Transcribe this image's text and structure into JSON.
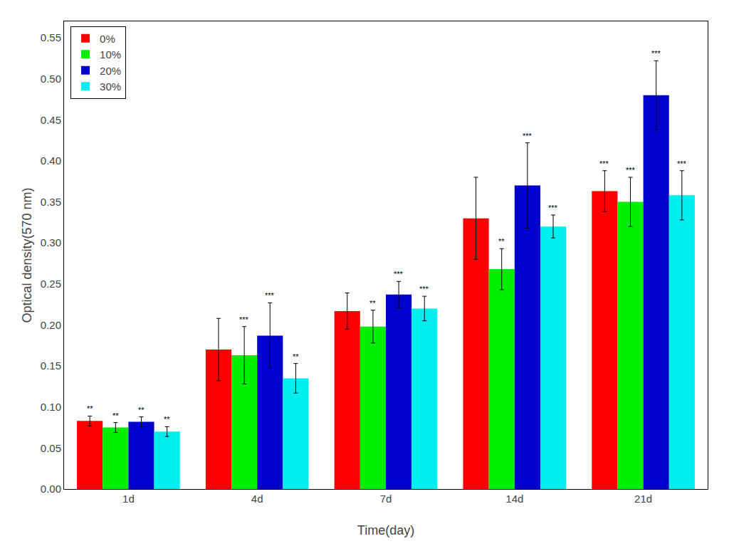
{
  "chart_data": {
    "type": "bar",
    "categories": [
      "1d",
      "4d",
      "7d",
      "14d",
      "21d"
    ],
    "series": [
      {
        "name": "0%",
        "color": "#FF0000",
        "values": [
          0.083,
          0.17,
          0.217,
          0.33,
          0.363
        ],
        "errors": [
          0.006,
          0.038,
          0.022,
          0.05,
          0.025
        ],
        "annotations": [
          "**",
          null,
          null,
          null,
          "***"
        ]
      },
      {
        "name": "10%",
        "color": "#00EE00",
        "values": [
          0.075,
          0.163,
          0.198,
          0.268,
          0.35
        ],
        "errors": [
          0.006,
          0.035,
          0.02,
          0.025,
          0.03
        ],
        "annotations": [
          "**",
          "***",
          "**",
          "**",
          "***"
        ]
      },
      {
        "name": "20%",
        "color": "#0000CC",
        "values": [
          0.082,
          0.187,
          0.237,
          0.37,
          0.48
        ],
        "errors": [
          0.006,
          0.04,
          0.016,
          0.052,
          0.042
        ],
        "annotations": [
          "**",
          "***",
          "***",
          "***",
          "***"
        ]
      },
      {
        "name": "30%",
        "color": "#00EEEE",
        "values": [
          0.07,
          0.135,
          0.22,
          0.32,
          0.358
        ],
        "errors": [
          0.006,
          0.018,
          0.015,
          0.014,
          0.03
        ],
        "annotations": [
          "**",
          "**",
          "***",
          "***",
          "***"
        ]
      }
    ],
    "xlabel": "Time(day)",
    "ylabel": "Optical density(570 nm)",
    "ylim": [
      0.0,
      0.57
    ],
    "yticks": [
      {
        "value": 0.0,
        "label": "0.00"
      },
      0.05,
      {
        "value": 0.1,
        "label": "0.10"
      },
      0.15,
      {
        "value": 0.2,
        "label": "0.20"
      },
      0.25,
      {
        "value": 0.3,
        "label": "0.30"
      },
      0.35,
      {
        "value": 0.4,
        "label": "0.40"
      },
      0.45,
      {
        "value": 0.5,
        "label": "0.50"
      },
      0.55
    ],
    "grid": false,
    "legend": "upper left"
  }
}
